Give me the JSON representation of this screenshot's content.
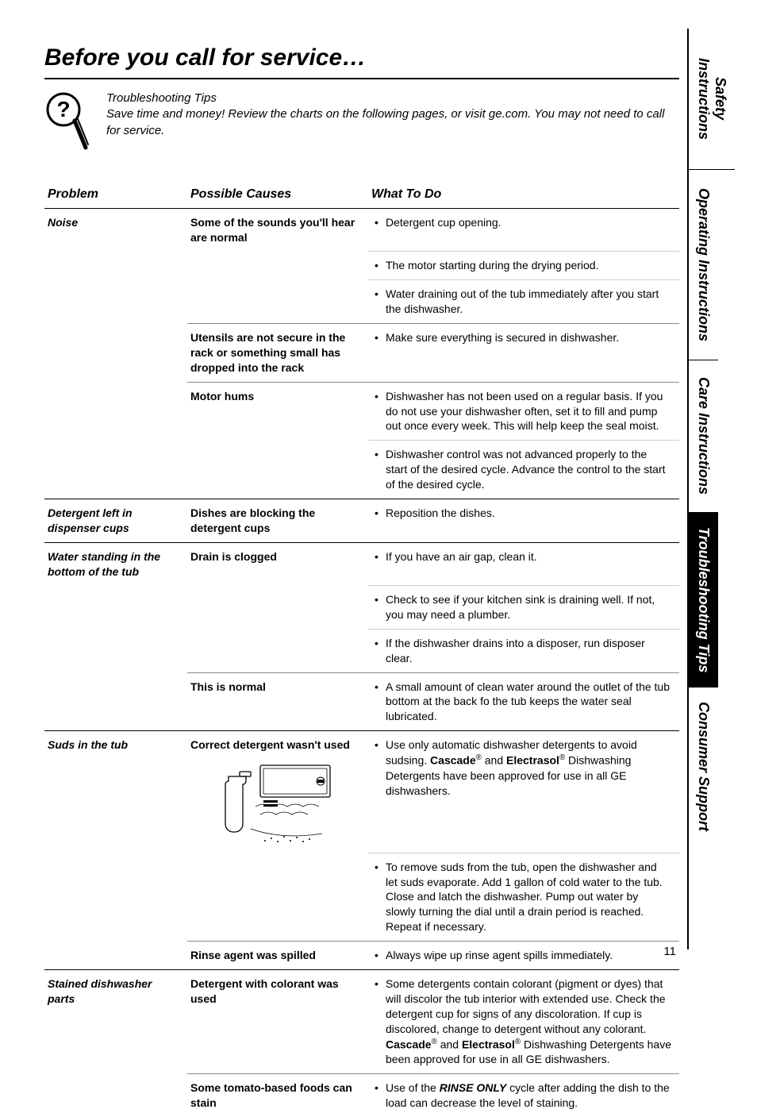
{
  "title": "Before you call for service…",
  "intro": {
    "heading": "Troubleshooting Tips",
    "body": "Save time and money! Review the charts on the following pages, or visit ge.com. You may not need to call for service."
  },
  "columns": {
    "problem": "Problem",
    "cause": "Possible Causes",
    "what": "What To Do"
  },
  "side_tabs": [
    {
      "label": "Safety Instructions",
      "key": "safety",
      "active": false
    },
    {
      "label": "Operating Instructions",
      "key": "op",
      "active": false
    },
    {
      "label": "Care Instructions",
      "key": "care",
      "active": false
    },
    {
      "label": "Troubleshooting Tips",
      "key": "trouble",
      "active": true
    },
    {
      "label": "Consumer Support",
      "key": "consumer",
      "active": false
    }
  ],
  "rows": [
    {
      "problem": "Noise",
      "cause": "Some of the sounds you'll hear are normal",
      "what": "Detergent cup opening.",
      "sep": "major"
    },
    {
      "what": "The motor starting during the drying period.",
      "sep": "bullet"
    },
    {
      "what": "Water draining out of the tub immediately after you start the dishwasher.",
      "sep": "bullet"
    },
    {
      "cause": "Utensils are not secure in the rack or something small has dropped into the rack",
      "what": "Make sure everything is secured in dishwasher.",
      "sep": "minor"
    },
    {
      "cause": "Motor hums",
      "what": "Dishwasher has not been used on a regular basis. If you do not use your dishwasher often, set it to fill and pump out once every week. This will help keep the seal moist.",
      "sep": "minor"
    },
    {
      "what": "Dishwasher control was not advanced properly to the start of the desired cycle. Advance the control to the start of the desired cycle.",
      "sep": "bullet"
    },
    {
      "problem": "Detergent left in dispenser cups",
      "cause": "Dishes are blocking the detergent cups",
      "what": "Reposition the dishes.",
      "sep": "major"
    },
    {
      "problem": "Water standing in the bottom of the tub",
      "cause": "Drain is clogged",
      "what": "If you have an air gap, clean it.",
      "sep": "major"
    },
    {
      "what": "Check to see if your kitchen sink is draining well. If not, you may need a plumber.",
      "sep": "bullet"
    },
    {
      "what": "If the dishwasher drains into a disposer, run disposer clear.",
      "sep": "bullet"
    },
    {
      "cause": "This is normal",
      "what": "A small amount of clean water around the outlet of the tub bottom at the back fo the tub keeps the water seal lubricated.",
      "sep": "minor"
    },
    {
      "problem": "Suds in the tub",
      "cause": "Correct detergent wasn't used",
      "cause_has_image": true,
      "what_html": "Use only automatic dishwasher detergents to avoid sudsing. <b>Cascade</b><span class='r'>®</span> and <b>Electrasol</b><span class='r'>®</span> Dishwashing Detergents have been approved for use in all GE dishwashers.",
      "sep": "major"
    },
    {
      "what": "To remove suds from the tub, open the dishwasher and let suds evaporate. Add 1 gallon of cold water to the tub. Close and latch the dishwasher. Pump out water by slowly turning the dial until a drain period is reached. Repeat if necessary.",
      "sep": "bullet"
    },
    {
      "cause": "Rinse agent was spilled",
      "what": "Always wipe up rinse agent spills immediately.",
      "sep": "minor"
    },
    {
      "problem": "Stained dishwasher parts",
      "cause": "Detergent with colorant was used",
      "what_html": "Some detergents contain colorant (pigment or dyes) that will discolor the tub interior with extended use. Check the detergent cup for signs of any discoloration. If cup is discolored, change to detergent without any colorant. <b>Cascade</b><span class='r'>®</span> and <b>Electrasol</b><span class='r'>®</span> Dishwashing Detergents have been approved for use in all GE dishwashers.",
      "sep": "major"
    },
    {
      "cause": "Some tomato-based foods can stain",
      "what_html": "Use of the <b><i>RINSE ONLY</i></b> cycle after adding the dish to the load can decrease the level of staining.",
      "sep": "minor"
    }
  ],
  "page_number": "11",
  "colors": {
    "text": "#000000",
    "bg": "#ffffff",
    "rule_major": "#000000",
    "rule_minor": "#888888",
    "rule_bullet": "#cccccc"
  },
  "fonts": {
    "title_pt": 30,
    "title_weight": 700,
    "title_style": "italic",
    "header_pt": 16,
    "body_pt": 14
  }
}
